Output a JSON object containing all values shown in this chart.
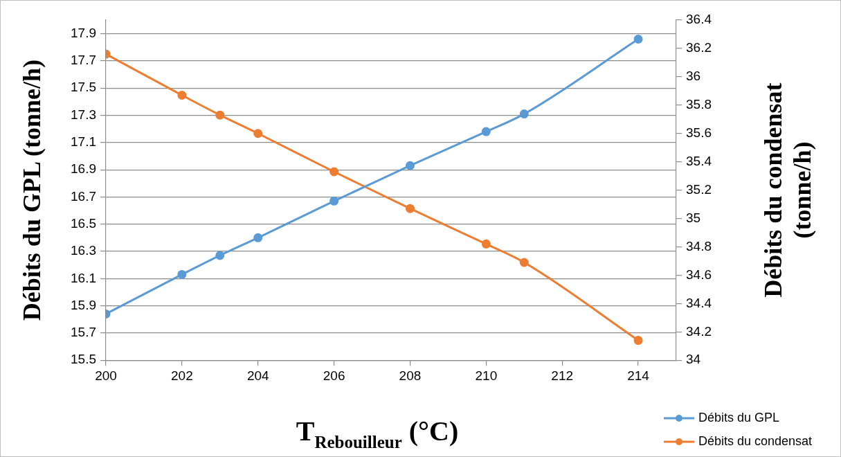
{
  "chart_data": {
    "type": "line",
    "xlabel": "T$_{Rebouilleur}$ (°C)",
    "ylabel": "Débits du GPL (tonne/h)",
    "y2label": "Débits du condensat (tonne/h)",
    "x": [
      200,
      202,
      203,
      204,
      206,
      208,
      210,
      211,
      214
    ],
    "series": [
      {
        "name": "Débits du GPL",
        "color": "#5b9bd5",
        "values": [
          15.84,
          16.13,
          16.27,
          16.4,
          16.67,
          16.93,
          17.18,
          17.31,
          17.86
        ]
      },
      {
        "name": "Débits du condensat",
        "color": "#ed7d31",
        "axis": "y2",
        "values": [
          36.16,
          35.87,
          35.73,
          35.6,
          35.33,
          35.07,
          34.82,
          34.69,
          34.14
        ]
      }
    ],
    "xlim": [
      200,
      215
    ],
    "xticks": [
      200,
      202,
      204,
      206,
      208,
      210,
      212,
      214
    ],
    "ylim": [
      15.5,
      18.0
    ],
    "yticks": [
      15.5,
      15.7,
      15.9,
      16.1,
      16.3,
      16.5,
      16.7,
      16.9,
      17.1,
      17.3,
      17.5,
      17.7,
      17.9
    ],
    "y2lim": [
      34,
      36.4
    ],
    "y2ticks": [
      34,
      34.2,
      34.4,
      34.6,
      34.8,
      35,
      35.2,
      35.4,
      35.6,
      35.8,
      36,
      36.2,
      36.4
    ],
    "grid": "y",
    "legend": "bottom right",
    "marker": "circle",
    "line_style": "solid"
  }
}
